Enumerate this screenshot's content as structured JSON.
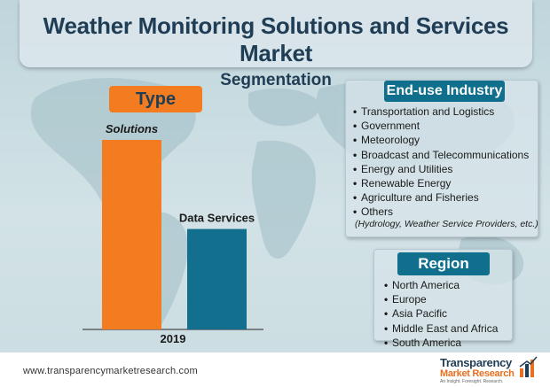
{
  "header": {
    "title_line1": "Weather Monitoring Solutions and Services Market",
    "title_line2": "Segmentation"
  },
  "type_panel": {
    "label": "Type"
  },
  "chart_data": {
    "type": "bar",
    "categories": [
      "Solutions",
      "Data Services"
    ],
    "values": [
      100,
      53
    ],
    "x_tick": "2019",
    "bar_colors": [
      "#f47c20",
      "#126f8d"
    ],
    "title": "",
    "xlabel": "",
    "ylabel": "",
    "ylim": [
      0,
      100
    ],
    "grid": false,
    "legend": "none"
  },
  "end_use": {
    "label": "End-use Industry",
    "items": [
      "Transportation and Logistics",
      "Government",
      "Meteorology",
      "Broadcast and Telecommunications",
      "Energy and Utilities",
      "Renewable Energy",
      "Agriculture and Fisheries",
      "Others"
    ],
    "note": "(Hydrology, Weather Service Providers, etc.)"
  },
  "region": {
    "label": "Region",
    "items": [
      "North America",
      "Europe",
      "Asia Pacific",
      "Middle East and Africa",
      "South America"
    ]
  },
  "footer": {
    "url": "www.transparencymarketresearch.com",
    "logo_line1": "Transparency",
    "logo_line2": "Market Research",
    "logo_tagline": "An Insight. Foresight. Research."
  },
  "colors": {
    "title": "#1f3d55",
    "accent_orange": "#f47c20",
    "accent_teal": "#0f6f8c",
    "background": "#c9dce1"
  }
}
